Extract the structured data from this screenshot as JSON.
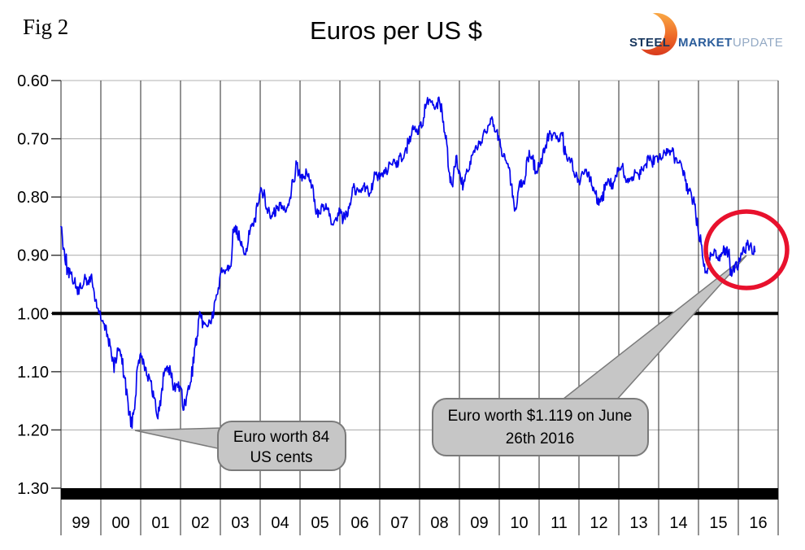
{
  "figure_label": "Fig 2",
  "title": "Euros per US $",
  "logo": {
    "word1": "STEEL",
    "word2": "MARKET",
    "word3": "UPDATE"
  },
  "y_axis": {
    "ticks": [
      "0.60",
      "0.70",
      "0.80",
      "0.90",
      "1.00",
      "1.10",
      "1.20",
      "1.30"
    ]
  },
  "x_axis": {
    "labels": [
      "99",
      "00",
      "01",
      "02",
      "03",
      "04",
      "05",
      "06",
      "07",
      "08",
      "09",
      "10",
      "11",
      "12",
      "13",
      "14",
      "15",
      "16"
    ]
  },
  "callout_low": {
    "line1": "Euro worth 84",
    "line2": "US cents"
  },
  "callout_recent": {
    "line1": "Euro worth $1.119 on June",
    "line2": "26th 2016"
  },
  "colors": {
    "line": "#0404ee",
    "grid_vertical": "#4d4d4d",
    "grid_horizontal": "#b2b2b2",
    "parity_line": "#000000",
    "baseline_bar": "#000000",
    "callout_fill": "#c6c6c6",
    "callout_border": "#7a7a7a",
    "highlight_circle": "#e8112d",
    "logo_orange_top": "#f9a845",
    "logo_orange_bottom": "#d93a1d"
  },
  "chart_data": {
    "type": "line",
    "title": "Euros per US $",
    "ylabel": "Euros per US $",
    "ylim": [
      0.6,
      1.3
    ],
    "y_increases_downward": true,
    "y_ticks": [
      0.6,
      0.7,
      0.8,
      0.9,
      1.0,
      1.1,
      1.2,
      1.3
    ],
    "x_categories": [
      "99",
      "00",
      "01",
      "02",
      "03",
      "04",
      "05",
      "06",
      "07",
      "08",
      "09",
      "10",
      "11",
      "12",
      "13",
      "14",
      "15",
      "16"
    ],
    "grid": true,
    "legend": false,
    "series": [
      {
        "name": "Euros per US dollar",
        "start": "1999-01",
        "frequency": "monthly",
        "values": [
          0.85,
          0.89,
          0.925,
          0.935,
          0.945,
          0.965,
          0.955,
          0.94,
          0.95,
          0.935,
          0.965,
          0.99,
          1.01,
          1.02,
          1.035,
          1.06,
          1.1,
          1.06,
          1.07,
          1.105,
          1.145,
          1.195,
          1.165,
          1.095,
          1.065,
          1.085,
          1.105,
          1.12,
          1.145,
          1.175,
          1.155,
          1.105,
          1.09,
          1.1,
          1.13,
          1.12,
          1.13,
          1.165,
          1.14,
          1.12,
          1.08,
          1.04,
          1.005,
          1.02,
          1.02,
          1.015,
          1.0,
          0.97,
          0.93,
          0.925,
          0.922,
          0.915,
          0.86,
          0.855,
          0.88,
          0.895,
          0.89,
          0.855,
          0.852,
          0.81,
          0.79,
          0.795,
          0.818,
          0.835,
          0.83,
          0.82,
          0.815,
          0.82,
          0.817,
          0.8,
          0.77,
          0.742,
          0.765,
          0.77,
          0.757,
          0.775,
          0.79,
          0.825,
          0.83,
          0.815,
          0.82,
          0.832,
          0.85,
          0.843,
          0.826,
          0.838,
          0.828,
          0.81,
          0.782,
          0.79,
          0.788,
          0.78,
          0.786,
          0.793,
          0.775,
          0.758,
          0.77,
          0.764,
          0.754,
          0.74,
          0.742,
          0.746,
          0.729,
          0.734,
          0.717,
          0.699,
          0.68,
          0.69,
          0.68,
          0.676,
          0.641,
          0.634,
          0.643,
          0.644,
          0.633,
          0.67,
          0.697,
          0.757,
          0.787,
          0.728,
          0.757,
          0.786,
          0.762,
          0.755,
          0.728,
          0.713,
          0.708,
          0.7,
          0.687,
          0.675,
          0.669,
          0.688,
          0.703,
          0.731,
          0.739,
          0.748,
          0.8,
          0.823,
          0.778,
          0.777,
          0.764,
          0.719,
          0.731,
          0.757,
          0.744,
          0.731,
          0.713,
          0.692,
          0.697,
          0.695,
          0.7,
          0.696,
          0.728,
          0.734,
          0.74,
          0.762,
          0.775,
          0.755,
          0.757,
          0.76,
          0.782,
          0.797,
          0.815,
          0.805,
          0.776,
          0.771,
          0.779,
          0.763,
          0.751,
          0.749,
          0.771,
          0.766,
          0.772,
          0.756,
          0.762,
          0.751,
          0.746,
          0.731,
          0.741,
          0.731,
          0.735,
          0.731,
          0.723,
          0.723,
          0.72,
          0.735,
          0.74,
          0.752,
          0.775,
          0.79,
          0.8,
          0.812,
          0.862,
          0.881,
          0.928,
          0.92,
          0.896,
          0.892,
          0.908,
          0.896,
          0.889,
          0.897,
          0.934,
          0.918,
          0.919,
          0.899,
          0.89,
          0.882,
          0.888,
          0.894
        ]
      }
    ],
    "annotations": [
      {
        "text": "Euro worth 84 US cents",
        "points_to": {
          "date": "2000-10",
          "value": 1.19
        }
      },
      {
        "text": "Euro worth $1.119 on June 26th 2016",
        "points_to": {
          "date": "2016-06-26",
          "value": 0.894
        }
      }
    ]
  }
}
